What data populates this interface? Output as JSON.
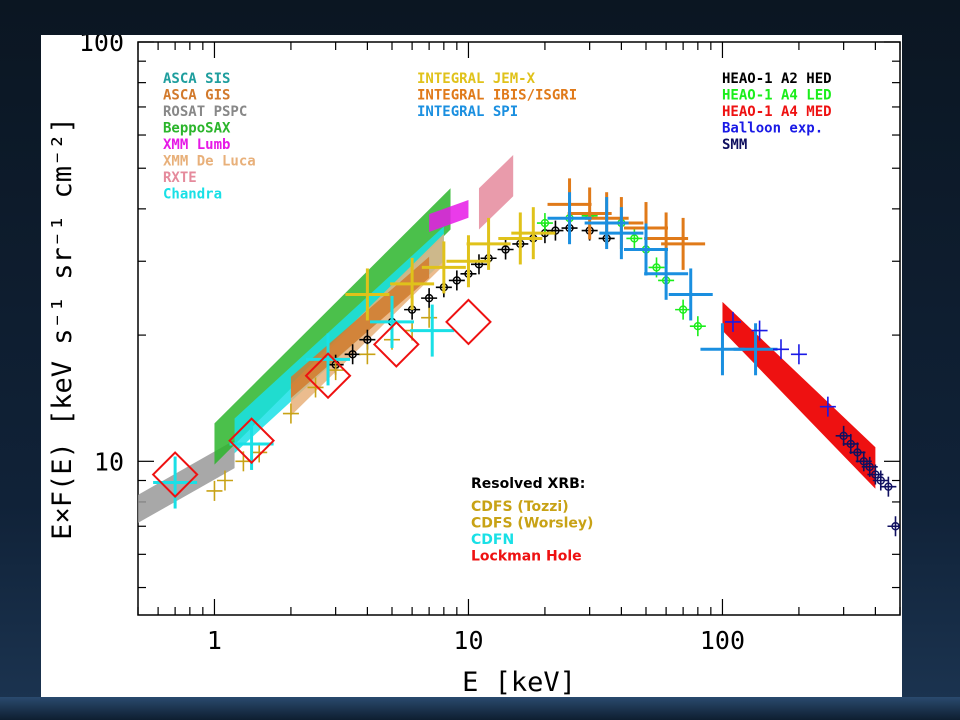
{
  "chart_data": {
    "type": "scatter",
    "title": "",
    "xlabel": "E [keV]",
    "ylabel": "E×F(E) [keV s⁻¹ sr⁻¹ cm⁻²]",
    "xscale": "log",
    "yscale": "log",
    "xlim": [
      0.5,
      500
    ],
    "ylim": [
      4.3,
      100
    ],
    "x_ticks": [
      1,
      10,
      100
    ],
    "y_ticks": [
      10,
      100
    ],
    "grid": false,
    "legend_left": [
      {
        "label": "ASCA SIS",
        "color": "#1f9e9e"
      },
      {
        "label": "ASCA GIS",
        "color": "#d27a2c"
      },
      {
        "label": "ROSAT PSPC",
        "color": "#888888"
      },
      {
        "label": "BeppoSAX",
        "color": "#2bb52b"
      },
      {
        "label": "XMM Lumb",
        "color": "#e619e6"
      },
      {
        "label": "XMM De Luca",
        "color": "#e8b07a"
      },
      {
        "label": "RXTE",
        "color": "#e58a9c"
      },
      {
        "label": "Chandra",
        "color": "#19e0e6"
      }
    ],
    "legend_middle": [
      {
        "label": "INTEGRAL JEM-X",
        "color": "#e0c21a"
      },
      {
        "label": "INTEGRAL IBIS/ISGRI",
        "color": "#e07a19"
      },
      {
        "label": "INTEGRAL SPI",
        "color": "#1a8fe0"
      }
    ],
    "legend_right": [
      {
        "label": "HEAO-1 A2 HED",
        "color": "#000000"
      },
      {
        "label": "HEAO-1 A4 LED",
        "color": "#1aee1a"
      },
      {
        "label": "HEAO-1 A4 MED",
        "color": "#ee1111"
      },
      {
        "label": "Balloon exp.",
        "color": "#1a1ae6"
      },
      {
        "label": "SMM",
        "color": "#101060"
      }
    ],
    "resolved_title": "Resolved XRB:",
    "legend_resolved": [
      {
        "label": "CDFS (Tozzi)",
        "color": "#c8a215"
      },
      {
        "label": "CDFS (Worsley)",
        "color": "#c8a215"
      },
      {
        "label": "CDFN",
        "color": "#19e0e6"
      },
      {
        "label": "Lockman Hole",
        "color": "#ee1111"
      }
    ],
    "series": [
      {
        "name": "HEAO-1 A2 HED",
        "color": "#000000",
        "x": [
          3,
          3.5,
          4,
          5,
          6,
          7,
          8,
          9,
          10,
          11,
          12,
          14,
          16,
          18,
          20,
          22,
          25,
          30,
          35
        ],
        "y": [
          17,
          18,
          19.5,
          21.5,
          23,
          24.5,
          26,
          27,
          28,
          29.5,
          30.5,
          32,
          33,
          34,
          35,
          35.5,
          36,
          35.5,
          34
        ]
      },
      {
        "name": "HEAO-1 A4 LED",
        "color": "#1aee1a",
        "x": [
          20,
          25,
          30,
          40,
          45,
          50,
          55,
          60,
          70,
          80
        ],
        "y": [
          37,
          38,
          38.5,
          37,
          34,
          32,
          29,
          27,
          23,
          21
        ]
      },
      {
        "name": "INTEGRAL IBIS/ISGRI",
        "color": "#e07a19",
        "x": [
          25,
          30,
          35,
          40,
          50,
          60,
          70
        ],
        "y": [
          41,
          39,
          38,
          37,
          36,
          34,
          33
        ]
      },
      {
        "name": "INTEGRAL SPI",
        "color": "#1a8fe0",
        "x": [
          25,
          35,
          40,
          50,
          60,
          75,
          100,
          135
        ],
        "y": [
          38,
          37,
          35,
          32,
          28,
          25,
          18.5,
          18.5
        ]
      },
      {
        "name": "INTEGRAL JEM-X",
        "color": "#e0c21a",
        "x": [
          4,
          6,
          8,
          10,
          12,
          16,
          18
        ],
        "y": [
          25,
          26.5,
          29,
          30,
          33,
          34,
          35
        ]
      },
      {
        "name": "Balloon exp.",
        "color": "#1a1ae6",
        "x": [
          110,
          140,
          170,
          200,
          260
        ],
        "y": [
          21.5,
          20.5,
          18.5,
          18,
          13.5
        ]
      },
      {
        "name": "SMM",
        "color": "#101060",
        "x": [
          300,
          320,
          340,
          360,
          380,
          400,
          420,
          450,
          480
        ],
        "y": [
          11.5,
          11,
          10.5,
          10,
          9.7,
          9.3,
          9,
          8.7,
          7
        ]
      },
      {
        "name": "CDFS (Tozzi)",
        "color": "#c8a215",
        "x": [
          1,
          1.1,
          1.3,
          1.5,
          2,
          2.5,
          3,
          4,
          5,
          6,
          7
        ],
        "y": [
          8.5,
          9,
          10,
          10.5,
          13,
          15,
          16.5,
          18,
          19.5,
          20.5,
          22
        ]
      },
      {
        "name": "CDFN",
        "color": "#19e0e6",
        "x": [
          0.7,
          1.4,
          2.8,
          5,
          7.2
        ],
        "y": [
          8.9,
          11,
          17.5,
          21.5,
          20.5
        ]
      },
      {
        "name": "Lockman Hole",
        "color": "#ee1111",
        "x": [
          0.7,
          1.4,
          2.8,
          5.2,
          10
        ],
        "y": [
          9.3,
          11.2,
          16,
          19,
          21.5
        ]
      },
      {
        "name": "HEAO-1 A4 MED",
        "color": "#ee1111",
        "x": [
          100,
          400
        ],
        "y": [
          22,
          9.5
        ]
      }
    ]
  }
}
